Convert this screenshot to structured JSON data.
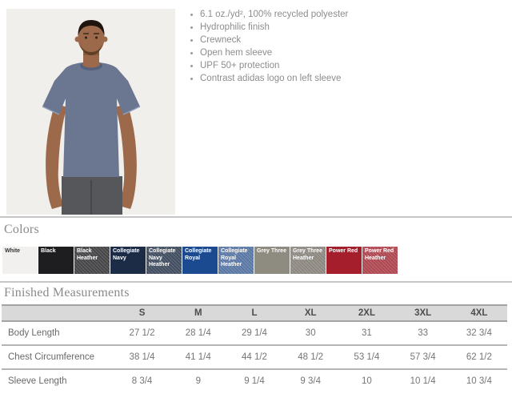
{
  "features": {
    "items": [
      "6.1 oz./yd², 100% recycled polyester",
      "Hydrophilic finish",
      "Crewneck",
      "Open hem sleeve",
      "UPF 50+ protection",
      "Contrast adidas logo on left sleeve"
    ]
  },
  "colors_section": {
    "title": "Colors",
    "swatches": [
      {
        "label": "White",
        "bg": "#f1f0ee",
        "text": "#333333",
        "heather": false
      },
      {
        "label": "Black",
        "bg": "#1e1e20",
        "text": "#ffffff",
        "heather": false
      },
      {
        "label": "Black Heather",
        "bg": "#4b4b4d",
        "text": "#ffffff",
        "heather": true
      },
      {
        "label": "Collegiate Navy",
        "bg": "#1c2c47",
        "text": "#ffffff",
        "heather": false
      },
      {
        "label": "Collegiate Navy Heather",
        "bg": "#475468",
        "text": "#ffffff",
        "heather": true
      },
      {
        "label": "Collegiate Royal",
        "bg": "#1b4a91",
        "text": "#ffffff",
        "heather": false
      },
      {
        "label": "Collegiate Royal Heather",
        "bg": "#6181b0",
        "text": "#ffffff",
        "heather": true
      },
      {
        "label": "Grey Three",
        "bg": "#8e8b81",
        "text": "#ffffff",
        "heather": false
      },
      {
        "label": "Grey Three Heather",
        "bg": "#96928a",
        "text": "#ffffff",
        "heather": true
      },
      {
        "label": "Power Red",
        "bg": "#a51e2c",
        "text": "#ffffff",
        "heather": false
      },
      {
        "label": "Power Red Heather",
        "bg": "#bb4d58",
        "text": "#ffffff",
        "heather": true
      }
    ]
  },
  "measurements": {
    "title": "Finished Measurements",
    "size_columns": [
      "S",
      "M",
      "L",
      "XL",
      "2XL",
      "3XL",
      "4XL"
    ],
    "rows": [
      {
        "label": "Body Length",
        "values": [
          "27 1/2",
          "28 1/4",
          "29 1/4",
          "30",
          "31",
          "33",
          "32 3/4"
        ]
      },
      {
        "label": "Chest Circumference",
        "values": [
          "38 1/4",
          "41 1/4",
          "44 1/2",
          "48 1/2",
          "53 1/4",
          "57 3/4",
          "62 1/2"
        ]
      },
      {
        "label": "Sleeve Length",
        "values": [
          "8 3/4",
          "9",
          "9 1/4",
          "9 3/4",
          "10",
          "10 1/4",
          "10 3/4"
        ]
      }
    ]
  }
}
